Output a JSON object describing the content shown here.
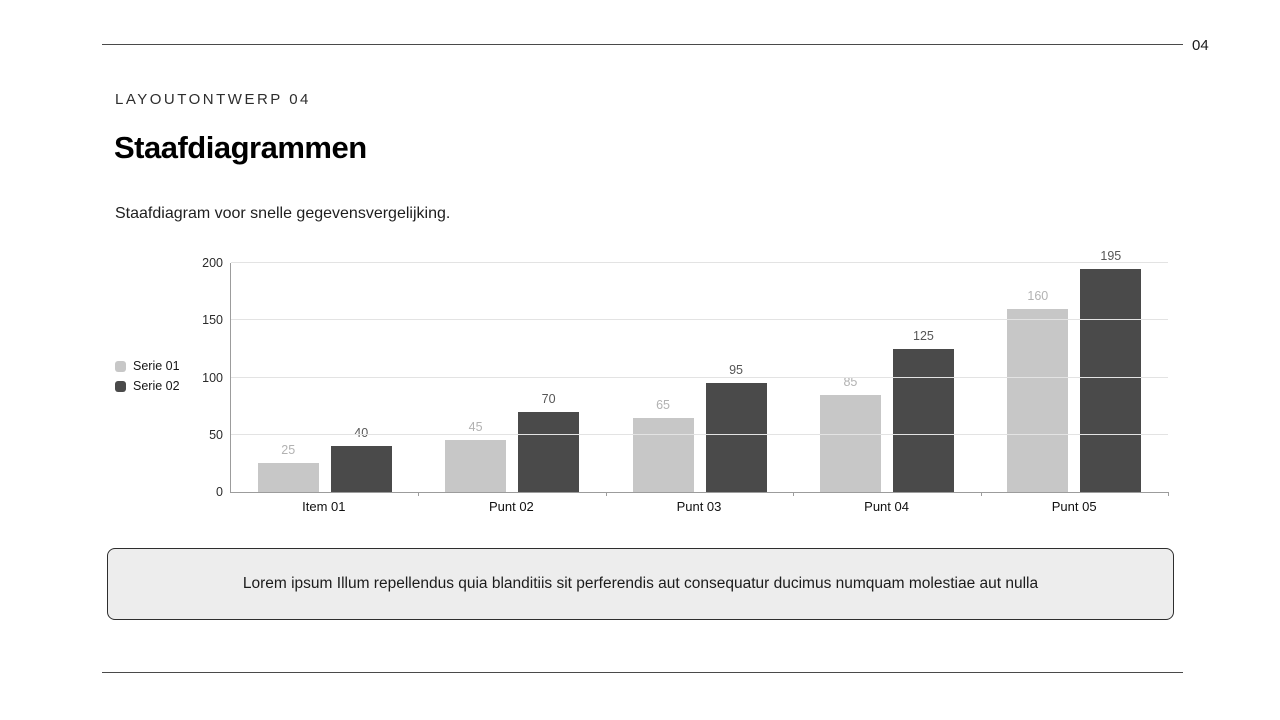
{
  "page": {
    "number": "04",
    "kicker": "LAYOUTONTWERP 04",
    "title": "Staafdiagrammen",
    "subtitle": "Staafdiagram voor snelle gegevensvergelijking.",
    "callout": "Lorem ipsum Illum repellendus quia blanditiis sit perferendis aut consequatur ducimus numquam molestiae aut nulla"
  },
  "chart_data": {
    "type": "bar",
    "title": "",
    "xlabel": "",
    "ylabel": "",
    "categories": [
      "Item 01",
      "Punt 02",
      "Punt 03",
      "Punt 04",
      "Punt 05"
    ],
    "series": [
      {
        "name": "Serie 01",
        "color": "#c7c7c7",
        "label_color": "#b2b2b2",
        "values": [
          25,
          45,
          65,
          85,
          160
        ]
      },
      {
        "name": "Serie 02",
        "color": "#4a4a4a",
        "label_color": "#565656",
        "values": [
          40,
          70,
          95,
          125,
          195
        ]
      }
    ],
    "ylim": [
      0,
      200
    ],
    "yticks": [
      0,
      50,
      100,
      150,
      200
    ],
    "grid": true,
    "legend_position": "left"
  }
}
